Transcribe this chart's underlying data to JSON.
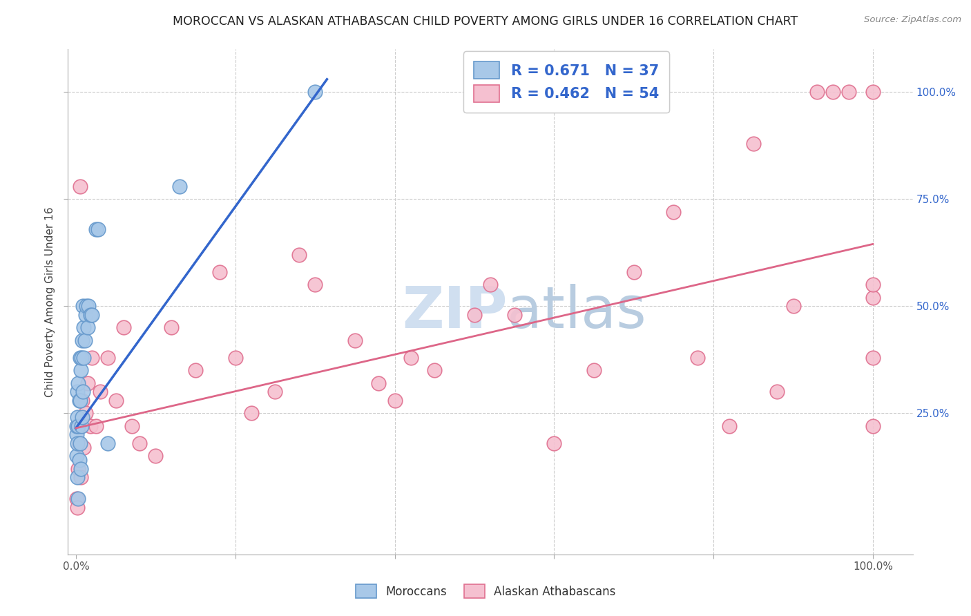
{
  "title": "MOROCCAN VS ALASKAN ATHABASCAN CHILD POVERTY AMONG GIRLS UNDER 16 CORRELATION CHART",
  "source": "Source: ZipAtlas.com",
  "ylabel": "Child Poverty Among Girls Under 16",
  "moroccan_R": "0.671",
  "moroccan_N": "37",
  "athabascan_R": "0.462",
  "athabascan_N": "54",
  "moroccan_color": "#a8c8e8",
  "moroccan_edge": "#6699cc",
  "athabascan_color": "#f5c0d0",
  "athabascan_edge": "#e07090",
  "moroccan_line_color": "#3366cc",
  "athabascan_line_color": "#dd6688",
  "legend_text_color": "#3366cc",
  "watermark_color": "#d0dff0",
  "background_color": "#ffffff",
  "grid_color": "#cccccc",
  "xlim": [
    -0.01,
    1.05
  ],
  "ylim": [
    -0.08,
    1.1
  ],
  "moroccan_x": [
    0.0005,
    0.001,
    0.001,
    0.0015,
    0.002,
    0.002,
    0.002,
    0.003,
    0.003,
    0.003,
    0.004,
    0.004,
    0.005,
    0.005,
    0.005,
    0.006,
    0.006,
    0.007,
    0.007,
    0.008,
    0.008,
    0.009,
    0.009,
    0.01,
    0.01,
    0.011,
    0.012,
    0.013,
    0.015,
    0.016,
    0.018,
    0.02,
    0.025,
    0.028,
    0.04,
    0.13,
    0.3
  ],
  "moroccan_y": [
    0.2,
    0.15,
    0.22,
    0.1,
    0.18,
    0.24,
    0.3,
    0.05,
    0.22,
    0.32,
    0.14,
    0.28,
    0.18,
    0.28,
    0.38,
    0.12,
    0.35,
    0.22,
    0.38,
    0.24,
    0.42,
    0.3,
    0.5,
    0.38,
    0.45,
    0.42,
    0.48,
    0.5,
    0.45,
    0.5,
    0.48,
    0.48,
    0.68,
    0.68,
    0.18,
    0.78,
    1.0
  ],
  "athabascan_x": [
    0.001,
    0.002,
    0.003,
    0.004,
    0.005,
    0.006,
    0.008,
    0.01,
    0.012,
    0.015,
    0.018,
    0.02,
    0.025,
    0.03,
    0.04,
    0.05,
    0.06,
    0.07,
    0.08,
    0.1,
    0.12,
    0.15,
    0.18,
    0.2,
    0.22,
    0.25,
    0.28,
    0.3,
    0.35,
    0.38,
    0.4,
    0.45,
    0.5,
    0.52,
    0.55,
    0.6,
    0.65,
    0.7,
    0.75,
    0.78,
    0.82,
    0.85,
    0.88,
    0.9,
    0.93,
    0.95,
    0.97,
    1.0,
    1.0,
    1.0,
    1.0,
    1.0,
    0.005,
    0.42
  ],
  "athabascan_y": [
    0.05,
    0.03,
    0.12,
    0.18,
    0.22,
    0.1,
    0.28,
    0.17,
    0.25,
    0.32,
    0.22,
    0.38,
    0.22,
    0.3,
    0.38,
    0.28,
    0.45,
    0.22,
    0.18,
    0.15,
    0.45,
    0.35,
    0.58,
    0.38,
    0.25,
    0.3,
    0.62,
    0.55,
    0.42,
    0.32,
    0.28,
    0.35,
    0.48,
    0.55,
    0.48,
    0.18,
    0.35,
    0.58,
    0.72,
    0.38,
    0.22,
    0.88,
    0.3,
    0.5,
    1.0,
    1.0,
    1.0,
    1.0,
    0.52,
    0.55,
    0.38,
    0.22,
    0.78,
    0.38
  ],
  "moroccan_line_x": [
    0.0,
    0.315
  ],
  "moroccan_line_y": [
    0.215,
    1.03
  ],
  "athabascan_line_x": [
    0.0,
    1.0
  ],
  "athabascan_line_y": [
    0.215,
    0.645
  ]
}
